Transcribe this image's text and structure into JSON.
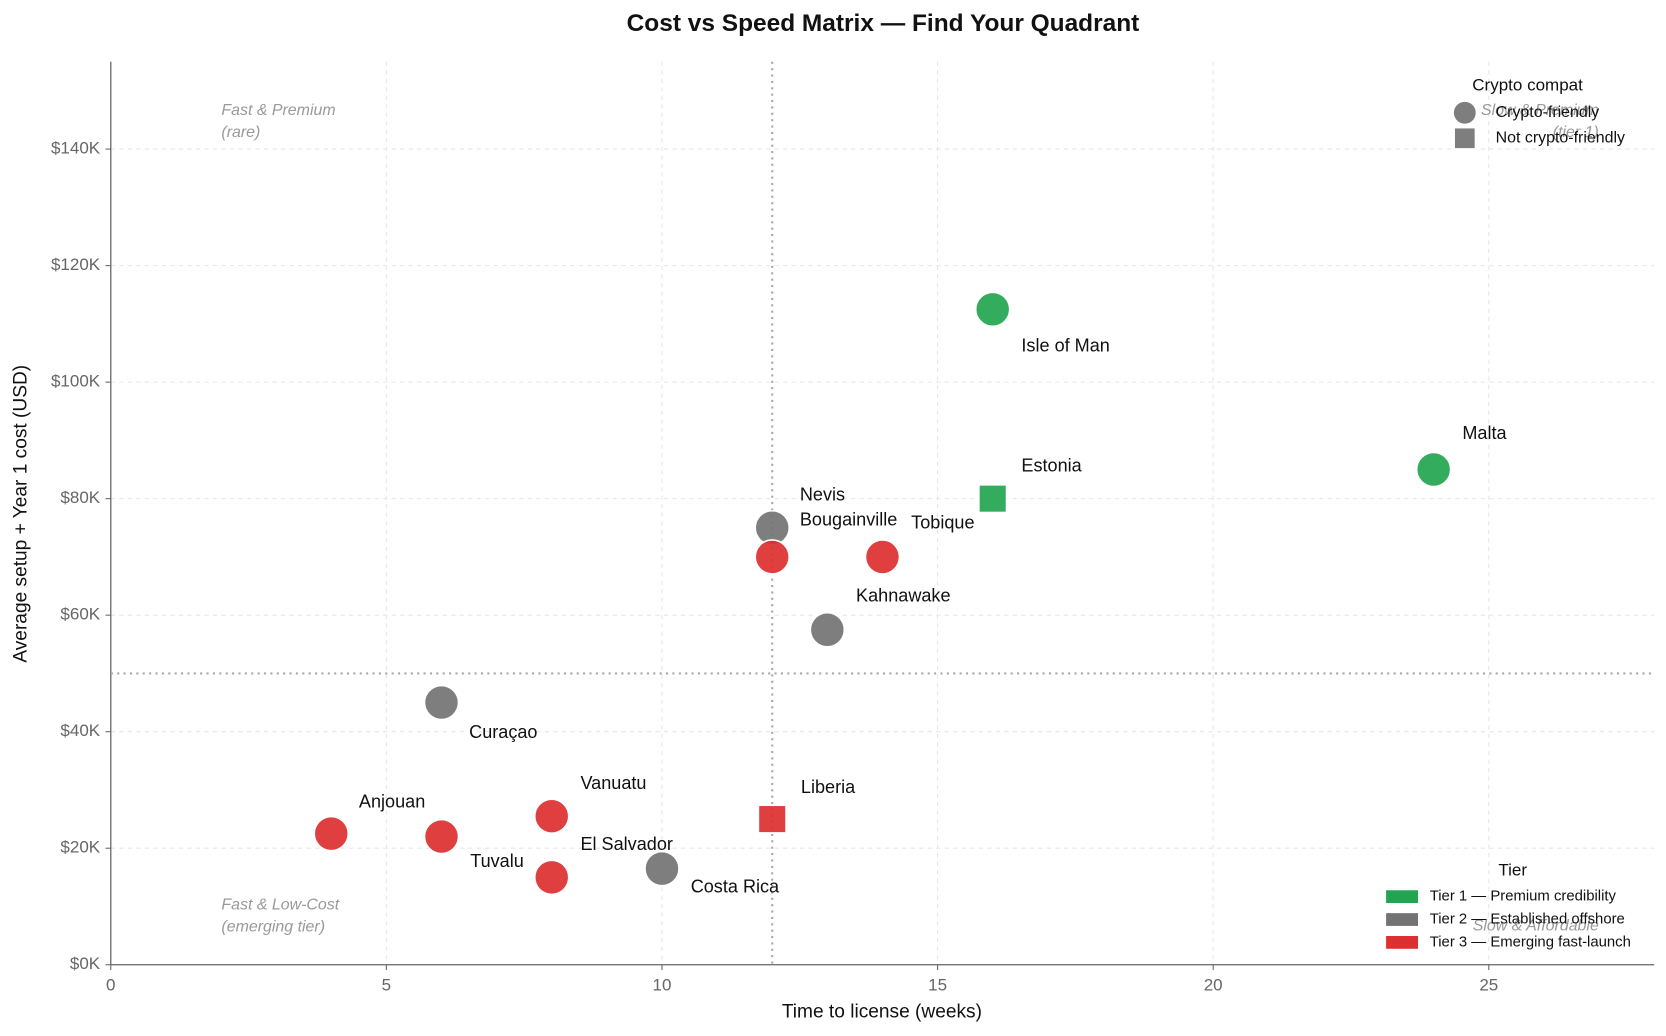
{
  "chart_data": {
    "type": "scatter",
    "title": "Cost vs Speed Matrix — Find Your Quadrant",
    "xlabel": "Time to license (weeks)",
    "ylabel": "Average setup + Year 1 cost (USD)",
    "xlim": [
      0,
      28
    ],
    "ylim": [
      0,
      155000
    ],
    "xticks": [
      0,
      5,
      10,
      15,
      20,
      25
    ],
    "yticks": [
      {
        "value": 0,
        "label": "$0K"
      },
      {
        "value": 20000,
        "label": "$20K"
      },
      {
        "value": 40000,
        "label": "$40K"
      },
      {
        "value": 60000,
        "label": "$60K"
      },
      {
        "value": 80000,
        "label": "$80K"
      },
      {
        "value": 100000,
        "label": "$100K"
      },
      {
        "value": 120000,
        "label": "$120K"
      },
      {
        "value": 140000,
        "label": "$140K"
      }
    ],
    "grid": true,
    "quadrant_x": 12,
    "quadrant_y": 50000,
    "tiers": [
      {
        "name": "Tier 1 — Premium credibility",
        "color": "#22a550"
      },
      {
        "name": "Tier 2 — Established offshore",
        "color": "#737373"
      },
      {
        "name": "Tier 3 — Emerging fast-launch",
        "color": "#dc2f2f"
      }
    ],
    "tier_legend_title": "Tier",
    "marker_legend_title": "Crypto compat",
    "markers": [
      {
        "name": "Crypto-friendly",
        "shape": "circle"
      },
      {
        "name": "Not crypto-friendly",
        "shape": "square"
      }
    ],
    "points": [
      {
        "label": "Isle of Man",
        "x": 16,
        "y": 112500,
        "tier": 0,
        "marker": 0
      },
      {
        "label": "Malta",
        "x": 24,
        "y": 85000,
        "tier": 0,
        "marker": 0
      },
      {
        "label": "Estonia",
        "x": 16,
        "y": 80000,
        "tier": 0,
        "marker": 1
      },
      {
        "label": "Nevis",
        "x": 12,
        "y": 75000,
        "tier": 1,
        "marker": 0
      },
      {
        "label": "Bougainville",
        "x": 12,
        "y": 70000,
        "tier": 2,
        "marker": 0
      },
      {
        "label": "Tobique",
        "x": 14,
        "y": 70000,
        "tier": 2,
        "marker": 0
      },
      {
        "label": "Kahnawake",
        "x": 13,
        "y": 57500,
        "tier": 1,
        "marker": 0
      },
      {
        "label": "Curaçao",
        "x": 6,
        "y": 45000,
        "tier": 1,
        "marker": 0
      },
      {
        "label": "Anjouan",
        "x": 4,
        "y": 22500,
        "tier": 2,
        "marker": 0
      },
      {
        "label": "Tuvalu",
        "x": 6,
        "y": 22000,
        "tier": 2,
        "marker": 0
      },
      {
        "label": "Vanuatu",
        "x": 8,
        "y": 25500,
        "tier": 2,
        "marker": 0
      },
      {
        "label": "El Salvador",
        "x": 8,
        "y": 15000,
        "tier": 2,
        "marker": 0
      },
      {
        "label": "Costa Rica",
        "x": 10,
        "y": 16500,
        "tier": 1,
        "marker": 0
      },
      {
        "label": "Liberia",
        "x": 12,
        "y": 25000,
        "tier": 2,
        "marker": 1
      }
    ],
    "annotations": [
      {
        "lines": [
          "Fast & Premium",
          "(rare)"
        ]
      },
      {
        "lines": [
          "Slow & Premium",
          "(tier 1)"
        ]
      },
      {
        "lines": [
          "Fast & Low-Cost",
          "(emerging tier)"
        ]
      },
      {
        "lines": [
          "Slow & Affordable"
        ]
      }
    ]
  }
}
